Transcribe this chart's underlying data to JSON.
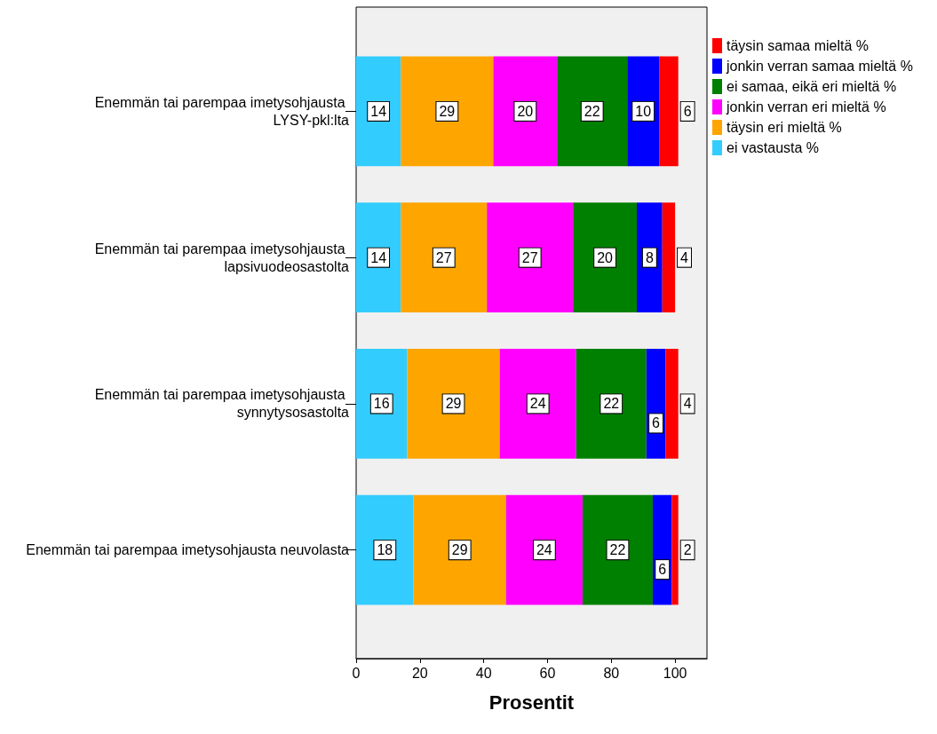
{
  "chart_data": {
    "type": "bar",
    "orientation": "horizontal",
    "stacked": true,
    "data_labels": true,
    "xlabel": "Prosentit",
    "legend": "right",
    "grid": false,
    "categories": [
      "Enemmän tai parempaa imetysohjausta LYSY-pkl:lta",
      "Enemmän tai parempaa imetysohjausta lapsivuodeosastolta",
      "Enemmän tai parempaa imetysohjausta synnytysosastolta",
      "Enemmän tai parempaa imetysohjausta neuvolasta"
    ],
    "xlim": [
      0,
      110
    ],
    "xticks": [
      0,
      20,
      40,
      60,
      80,
      100
    ],
    "series": [
      {
        "name": "ei vastausta %",
        "color": "#33ccff",
        "values": [
          14,
          14,
          16,
          18
        ]
      },
      {
        "name": "täysin eri mieltä %",
        "color": "#ffa500",
        "values": [
          29,
          27,
          29,
          29
        ]
      },
      {
        "name": "jonkin verran eri mieltä %",
        "color": "#ff00ff",
        "values": [
          20,
          27,
          24,
          24
        ]
      },
      {
        "name": "ei samaa, eikä eri mieltä %",
        "color": "#008000",
        "values": [
          22,
          20,
          22,
          22
        ]
      },
      {
        "name": "jonkin verran samaa mieltä %",
        "color": "#0000ff",
        "values": [
          10,
          8,
          6,
          6
        ]
      },
      {
        "name": "täysin samaa mieltä %",
        "color": "#ff0000",
        "values": [
          6,
          4,
          4,
          2
        ]
      }
    ]
  }
}
